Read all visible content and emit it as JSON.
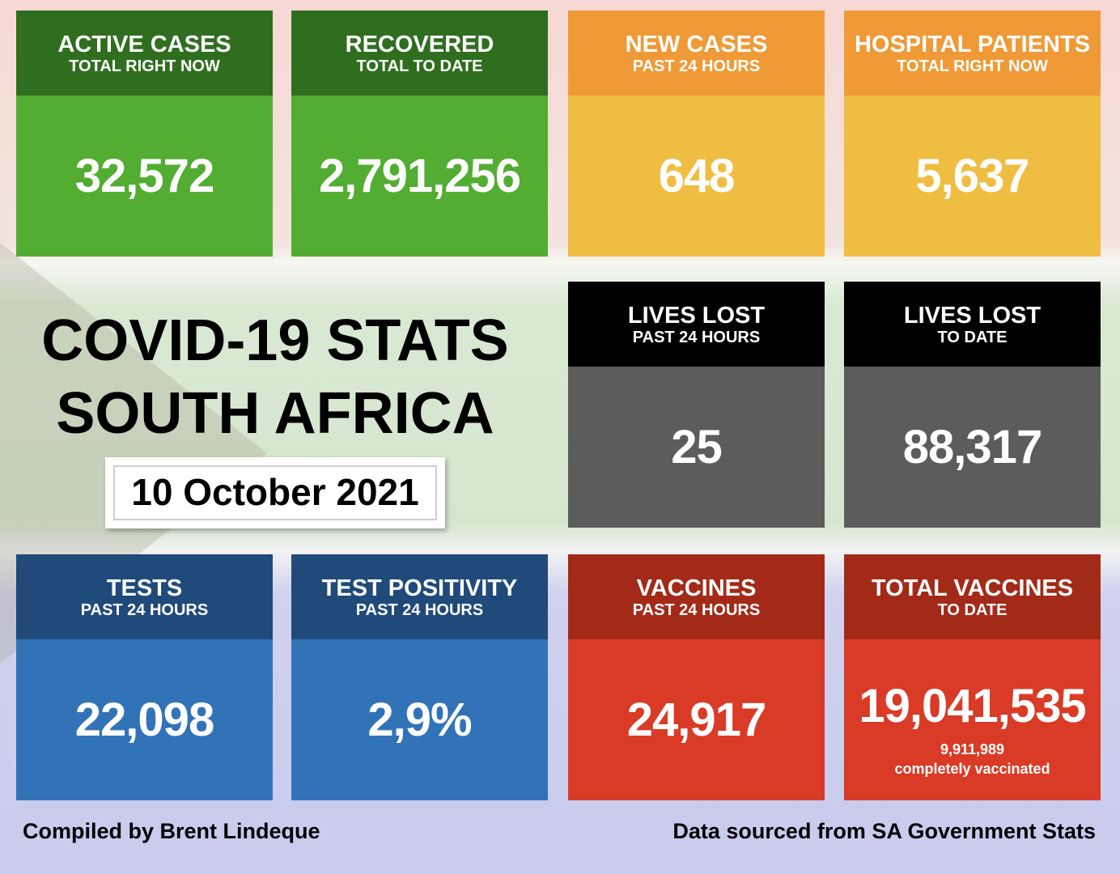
{
  "title": {
    "line1": "COVID-19 STATS",
    "line2": "SOUTH AFRICA",
    "date": "10 October 2021"
  },
  "cards": [
    {
      "title": "ACTIVE CASES",
      "subtitle": "TOTAL RIGHT NOW",
      "value": "32,572",
      "color": "#52ad32"
    },
    {
      "title": "RECOVERED",
      "subtitle": "TOTAL TO DATE",
      "value": "2,791,256",
      "color": "#52ad32"
    },
    {
      "title": "NEW CASES",
      "subtitle": "PAST 24 HOURS",
      "value": "648",
      "color": "#efbd41"
    },
    {
      "title": "HOSPITAL PATIENTS",
      "subtitle": "TOTAL RIGHT NOW",
      "value": "5,637",
      "color": "#efbd41"
    },
    {
      "title": "LIVES LOST",
      "subtitle": "PAST 24 HOURS",
      "value": "25",
      "color": "#5c5c5c"
    },
    {
      "title": "LIVES LOST",
      "subtitle": "TO DATE",
      "value": "88,317",
      "color": "#5c5c5c"
    },
    {
      "title": "TESTS",
      "subtitle": "PAST 24 HOURS",
      "value": "22,098",
      "color": "#3273b8"
    },
    {
      "title": "TEST POSITIVITY",
      "subtitle": "PAST 24 HOURS",
      "value": "2,9%",
      "color": "#3273b8"
    },
    {
      "title": "VACCINES",
      "subtitle": "PAST 24 HOURS",
      "value": "24,917",
      "color": "#d93b26"
    },
    {
      "title": "TOTAL VACCINES",
      "subtitle": "TO DATE",
      "value": "19,041,535",
      "note1": "9,911,989",
      "note2": "completely vaccinated",
      "color": "#d93b26"
    }
  ],
  "footer": {
    "left": "Compiled by Brent Lindeque",
    "right": "Data sourced from SA Government Stats"
  }
}
